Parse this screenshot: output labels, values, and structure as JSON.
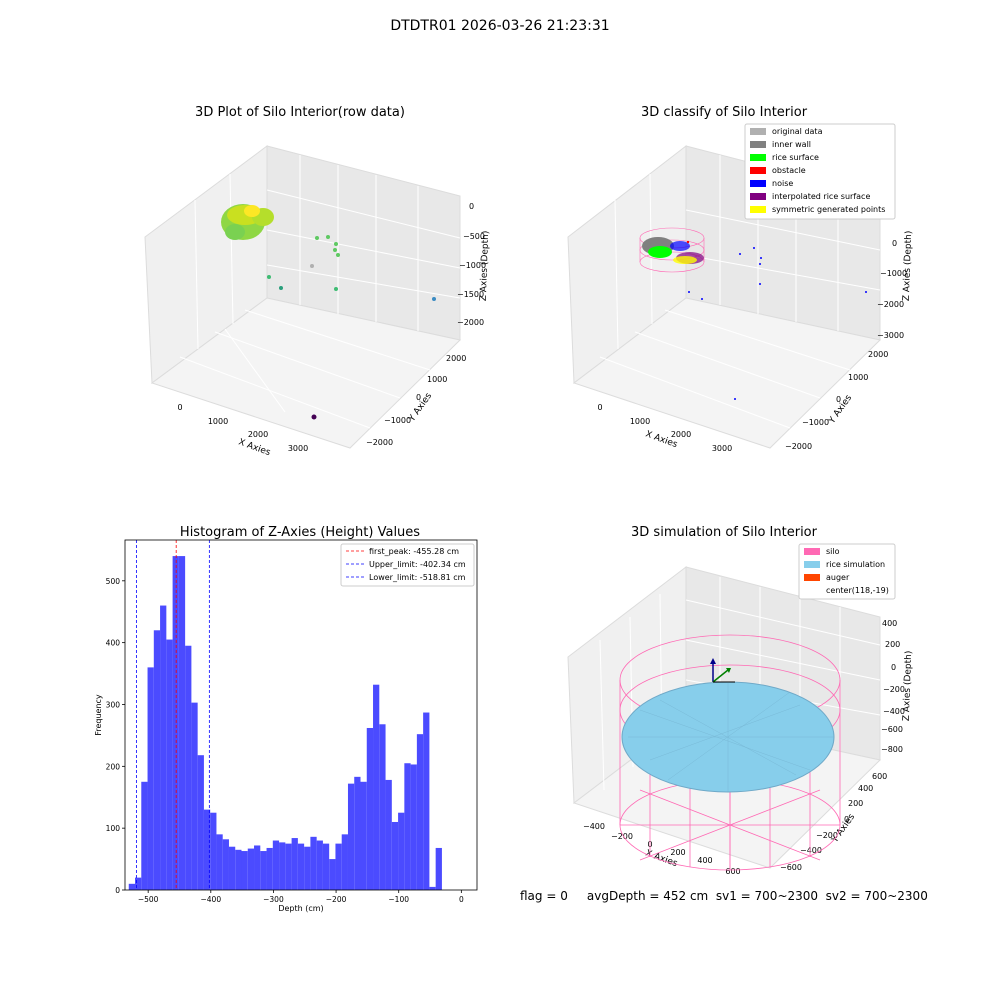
{
  "figure": {
    "suptitle": "DTDTR01 2026-03-26 21:23:31",
    "status_line": "flag = 0     avgDepth = 452 cm  sv1 = 700~2300  sv2 = 700~2300"
  },
  "chart_data": [
    {
      "type": "scatter3d",
      "title": "3D Plot of Silo Interior(row data)",
      "xlabel": "X Axies",
      "ylabel": "Y Axies",
      "zlabel": "Z Axies (Depth)",
      "x_ticks": [
        "0",
        "1000",
        "2000",
        "3000"
      ],
      "y_ticks": [
        "−2000",
        "−1000",
        "0",
        "1000",
        "2000"
      ],
      "z_ticks": [
        "0",
        "−500",
        "−1000",
        "−1500",
        "−2000"
      ],
      "colormap": "viridis"
    },
    {
      "type": "scatter3d",
      "title": "3D classify of Silo Interior",
      "xlabel": "X Axies",
      "ylabel": "Y Axies",
      "zlabel": "Z Axies (Depth)",
      "x_ticks": [
        "0",
        "1000",
        "2000",
        "3000"
      ],
      "y_ticks": [
        "−2000",
        "−1000",
        "0",
        "1000",
        "2000"
      ],
      "z_ticks": [
        "0",
        "−1000",
        "−2000",
        "−3000"
      ],
      "legend_position": "top-right",
      "legend": [
        {
          "label": "original data",
          "color": "#b0b0b0"
        },
        {
          "label": "inner wall",
          "color": "#808080"
        },
        {
          "label": "rice surface",
          "color": "#00ff00"
        },
        {
          "label": "obstacle",
          "color": "#ff0000"
        },
        {
          "label": "noise",
          "color": "#0000ff"
        },
        {
          "label": "interpolated rice surface",
          "color": "#800080"
        },
        {
          "label": "symmetric generated points",
          "color": "#ffff00"
        }
      ]
    },
    {
      "type": "bar",
      "title": "Histogram of Z-Axies (Height) Values",
      "xlabel": "Depth (cm)",
      "ylabel": "Frequency",
      "xlim": [
        -537,
        25
      ],
      "ylim": [
        0,
        566
      ],
      "x_ticks": [
        -500,
        -400,
        -300,
        -200,
        -100,
        0
      ],
      "y_ticks": [
        0,
        100,
        200,
        300,
        400,
        500
      ],
      "bar_color": "#4b4bff",
      "bin_width": 10.0,
      "bin_start": -531.0,
      "values": [
        10,
        20,
        175,
        360,
        420,
        460,
        405,
        540,
        540,
        395,
        303,
        218,
        130,
        125,
        90,
        82,
        70,
        65,
        63,
        67,
        72,
        63,
        68,
        80,
        77,
        75,
        84,
        75,
        70,
        86,
        80,
        75,
        50,
        75,
        90,
        172,
        183,
        175,
        262,
        332,
        268,
        178,
        110,
        125,
        205,
        203,
        252,
        287,
        5,
        68
      ],
      "vlines": [
        {
          "label": "first_peak: -455.28 cm",
          "value": -455.28,
          "color": "#ff0000"
        },
        {
          "label": "Upper_limit: -402.34 cm",
          "value": -402.34,
          "color": "#0000ff"
        },
        {
          "label": "Lower_limit: -518.81 cm",
          "value": -518.81,
          "color": "#0000ff"
        }
      ],
      "legend_position": "top-right"
    },
    {
      "type": "surface3d",
      "title": "3D simulation of Silo Interior",
      "xlabel": "X Axies",
      "ylabel": "Y Axies",
      "zlabel": "Z Axies (Depth)",
      "x_ticks": [
        "−400",
        "−200",
        "0",
        "200",
        "400",
        "600"
      ],
      "y_ticks": [
        "−600",
        "−400",
        "−200",
        "0",
        "200",
        "400",
        "600"
      ],
      "z_ticks": [
        "400",
        "200",
        "0",
        "−200",
        "−400",
        "−600",
        "−800"
      ],
      "legend_position": "top-right",
      "legend": [
        {
          "label": "silo",
          "color": "#ff69b4"
        },
        {
          "label": "rice simulation",
          "color": "#87ceeb"
        },
        {
          "label": "auger",
          "color": "#ff4500"
        },
        {
          "label": "center(118,-19)",
          "color": ""
        }
      ]
    }
  ]
}
